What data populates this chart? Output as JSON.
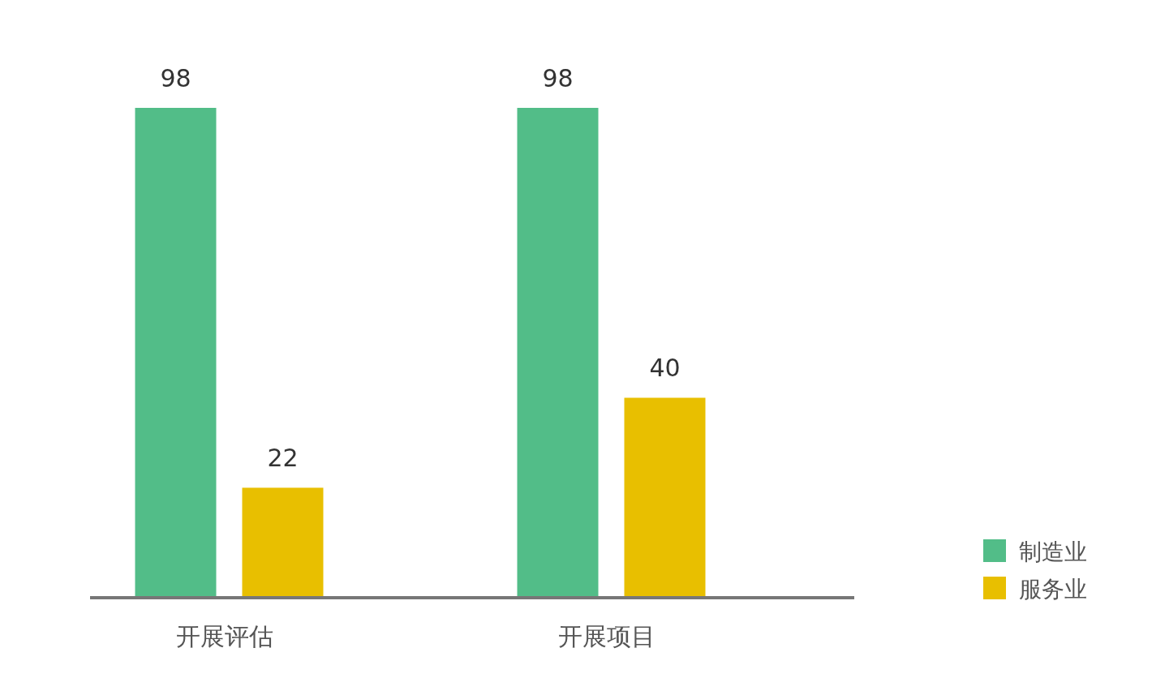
{
  "chart_data": {
    "type": "bar",
    "categories": [
      "开展评估",
      "开展项目"
    ],
    "series": [
      {
        "name": "制造业",
        "color": "#52bd88",
        "values": [
          98,
          98
        ]
      },
      {
        "name": "服务业",
        "color": "#e8bf00",
        "values": [
          22,
          40
        ]
      }
    ],
    "data_labels": true,
    "legend": "right"
  }
}
